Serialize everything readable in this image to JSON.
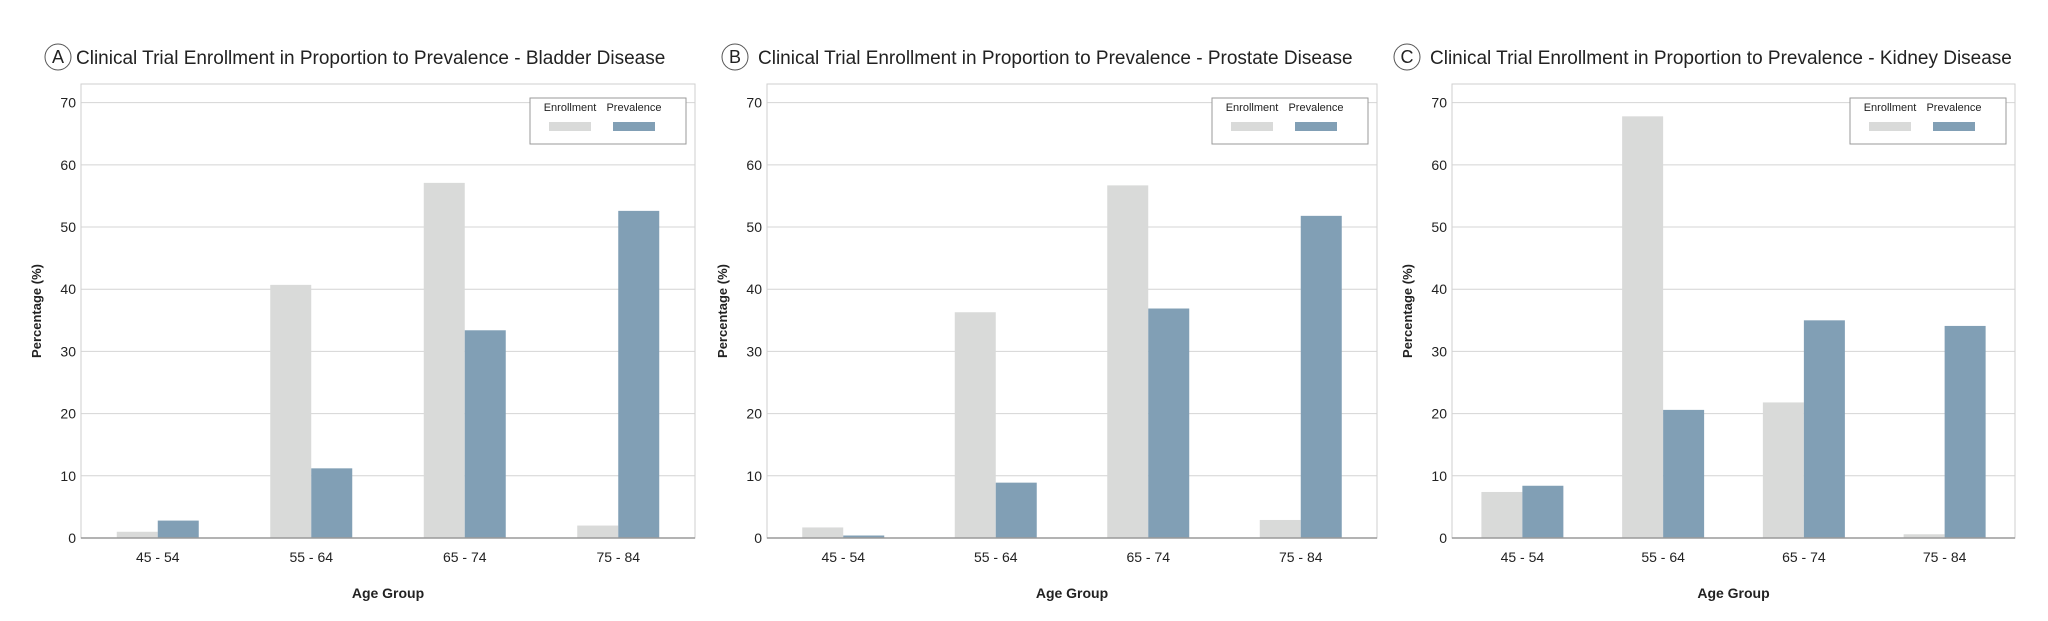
{
  "colors": {
    "enrollment": "#d9dad9",
    "prevalence": "#819fb5",
    "grid": "#d4d4d4",
    "axis": "#9a9a9a",
    "text": "#222222"
  },
  "chart_data": [
    {
      "type": "bar",
      "panel_letter": "A",
      "title": "Clinical Trial Enrollment in Proportion to Prevalence - Bladder Disease",
      "xlabel": "Age Group",
      "ylabel": "Percentage (%)",
      "ylim": [
        0,
        73
      ],
      "yticks": [
        0,
        10,
        20,
        30,
        40,
        50,
        60,
        70
      ],
      "grid": true,
      "legend_position": "top-right",
      "categories": [
        "45 - 54",
        "55 - 64",
        "65 - 74",
        "75 - 84"
      ],
      "series": [
        {
          "name": "Enrollment",
          "values": [
            1.0,
            40.7,
            57.1,
            2.0
          ]
        },
        {
          "name": "Prevalence",
          "values": [
            2.8,
            11.2,
            33.4,
            52.6
          ]
        }
      ]
    },
    {
      "type": "bar",
      "panel_letter": "B",
      "title": "Clinical Trial Enrollment in Proportion to Prevalence - Prostate Disease",
      "xlabel": "Age Group",
      "ylabel": "Percentage (%)",
      "ylim": [
        0,
        73
      ],
      "yticks": [
        0,
        10,
        20,
        30,
        40,
        50,
        60,
        70
      ],
      "grid": true,
      "legend_position": "top-right",
      "categories": [
        "45 - 54",
        "55 - 64",
        "65 - 74",
        "75 - 84"
      ],
      "series": [
        {
          "name": "Enrollment",
          "values": [
            1.7,
            36.3,
            56.7,
            2.9
          ]
        },
        {
          "name": "Prevalence",
          "values": [
            0.4,
            8.9,
            36.9,
            51.8
          ]
        }
      ]
    },
    {
      "type": "bar",
      "panel_letter": "C",
      "title": "Clinical Trial Enrollment in Proportion to Prevalence  - Kidney Disease",
      "xlabel": "Age Group",
      "ylabel": "Percentage (%)",
      "ylim": [
        0,
        73
      ],
      "yticks": [
        0,
        10,
        20,
        30,
        40,
        50,
        60,
        70
      ],
      "grid": true,
      "legend_position": "top-right",
      "categories": [
        "45 - 54",
        "55 - 64",
        "65 - 74",
        "75 - 84"
      ],
      "series": [
        {
          "name": "Enrollment",
          "values": [
            7.4,
            67.8,
            21.8,
            0.6
          ]
        },
        {
          "name": "Prevalence",
          "values": [
            8.4,
            20.6,
            35.0,
            34.1
          ]
        }
      ]
    }
  ]
}
